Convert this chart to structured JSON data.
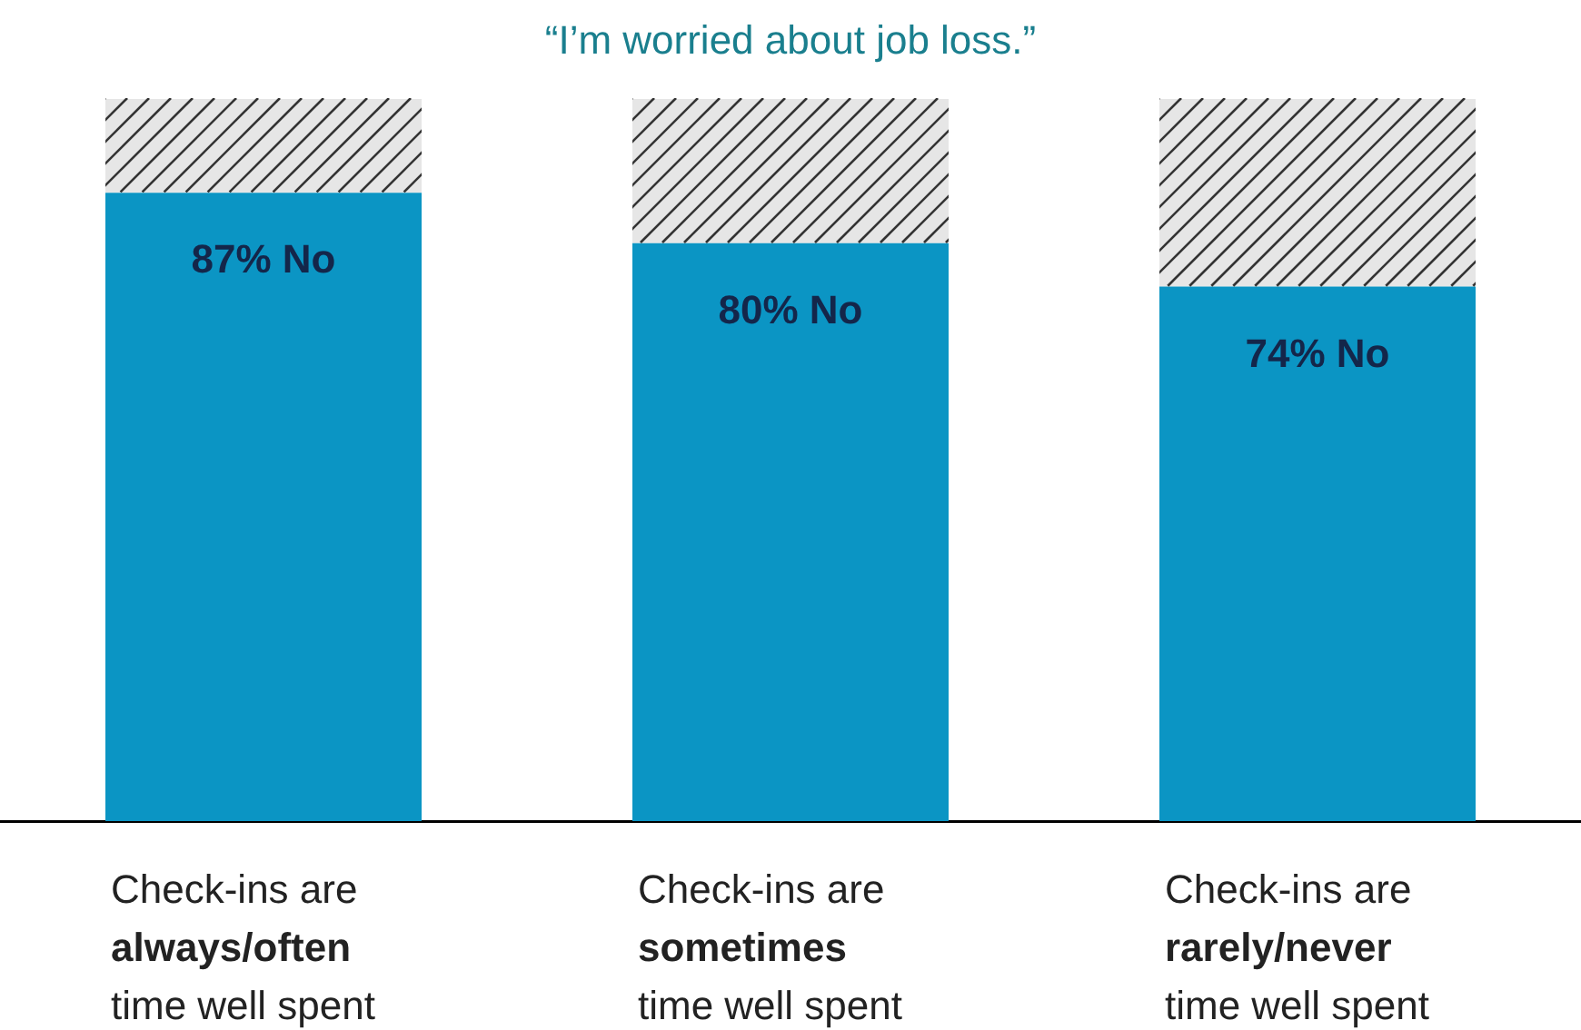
{
  "chart_data": {
    "type": "bar",
    "title": "“I’m worried about job loss.”",
    "stacked": true,
    "categories": [
      "Check-ins are\nalways/often\ntime well spent",
      "Check-ins are\nsometimes\ntime well spent",
      "Check-ins are\nrarely/never\ntime well spent"
    ],
    "series": [
      {
        "color": "#0b95c4",
        "values": [
          87,
          80,
          74
        ],
        "value_labels": [
          "87% No",
          "80% No",
          "74% No"
        ]
      },
      {
        "color": "#e6e6e6",
        "values": [
          13,
          20,
          26
        ]
      }
    ],
    "tick_labels": "x",
    "grid": false,
    "legend": false
  }
}
